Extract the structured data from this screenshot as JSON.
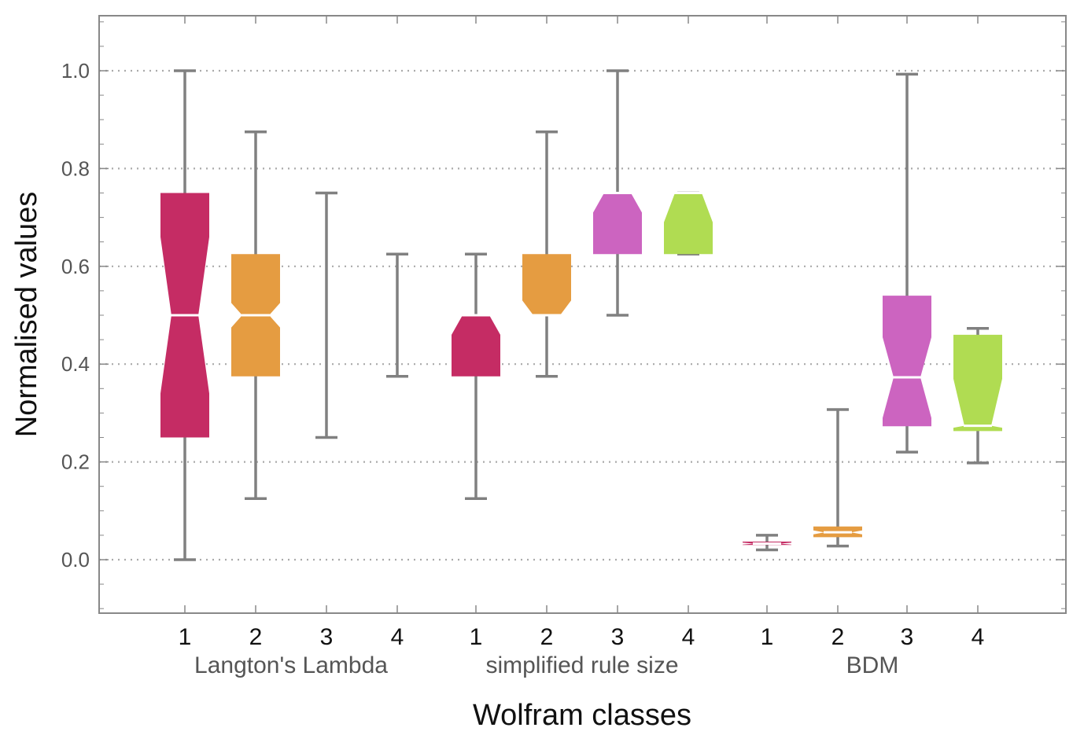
{
  "chart_data": {
    "type": "box",
    "title": "",
    "xlabel": "Wolfram classes",
    "ylabel": "Normalised values",
    "ylim": [
      -0.11,
      1.11
    ],
    "yticks": [
      "0.0",
      "0.2",
      "0.4",
      "0.6",
      "0.8",
      "1.0"
    ],
    "ytick_values": [
      0.0,
      0.2,
      0.4,
      0.6,
      0.8,
      1.0
    ],
    "grid": "horizontal dotted",
    "colors": {
      "class1": "#c52c64",
      "class2": "#e59c41",
      "class3": "#cc64c0",
      "class4": "#b0dc52",
      "whisker": "#808080",
      "frame": "#888888",
      "grid": "#aaaaaa",
      "median": "#ffffff"
    },
    "groups": [
      {
        "name": "Langton's Lambda",
        "boxes": [
          {
            "label": "1",
            "class": 1,
            "min": 0.0,
            "q1": 0.25,
            "median": 0.5,
            "q3": 0.75,
            "max": 1.0,
            "notch_low": 0.34,
            "notch_high": 0.66
          },
          {
            "label": "2",
            "class": 2,
            "min": 0.125,
            "q1": 0.375,
            "median": 0.5,
            "q3": 0.625,
            "max": 0.875,
            "notch_low": 0.475,
            "notch_high": 0.525
          },
          {
            "label": "3",
            "class": 3,
            "min": 0.25,
            "q1": null,
            "median": null,
            "q3": null,
            "max": 0.75,
            "notch_low": null,
            "notch_high": null
          },
          {
            "label": "4",
            "class": 4,
            "min": 0.375,
            "q1": null,
            "median": null,
            "q3": null,
            "max": 0.625,
            "notch_low": null,
            "notch_high": null
          }
        ]
      },
      {
        "name": "simplified rule size",
        "boxes": [
          {
            "label": "1",
            "class": 1,
            "min": 0.125,
            "q1": 0.375,
            "median": 0.5,
            "q3": 0.5,
            "max": 0.625,
            "notch_low": 0.46,
            "notch_high": 0.5
          },
          {
            "label": "2",
            "class": 2,
            "min": 0.375,
            "q1": 0.5,
            "median": 0.5,
            "q3": 0.625,
            "max": 0.875,
            "notch_low": 0.5,
            "notch_high": 0.53
          },
          {
            "label": "3",
            "class": 3,
            "min": 0.5,
            "q1": 0.625,
            "median": 0.75,
            "q3": 0.75,
            "max": 1.0,
            "notch_low": 0.71,
            "notch_high": 0.75
          },
          {
            "label": "4",
            "class": 4,
            "min": 0.625,
            "q1": 0.625,
            "median": 0.75,
            "q3": 0.75,
            "max": 0.75,
            "notch_low": 0.69,
            "notch_high": 0.75
          }
        ]
      },
      {
        "name": "BDM",
        "boxes": [
          {
            "label": "1",
            "class": 1,
            "min": 0.02,
            "q1": 0.03,
            "median": 0.033,
            "q3": 0.037,
            "max": 0.05,
            "notch_low": 0.031,
            "notch_high": 0.035
          },
          {
            "label": "2",
            "class": 2,
            "min": 0.028,
            "q1": 0.046,
            "median": 0.056,
            "q3": 0.068,
            "max": 0.307,
            "notch_low": 0.052,
            "notch_high": 0.06
          },
          {
            "label": "3",
            "class": 3,
            "min": 0.22,
            "q1": 0.273,
            "median": 0.373,
            "q3": 0.54,
            "max": 0.993,
            "notch_low": 0.29,
            "notch_high": 0.455
          },
          {
            "label": "4",
            "class": 4,
            "min": 0.198,
            "q1": 0.263,
            "median": 0.274,
            "q3": 0.46,
            "max": 0.473,
            "notch_low": 0.27,
            "notch_high": 0.37
          }
        ]
      }
    ]
  }
}
